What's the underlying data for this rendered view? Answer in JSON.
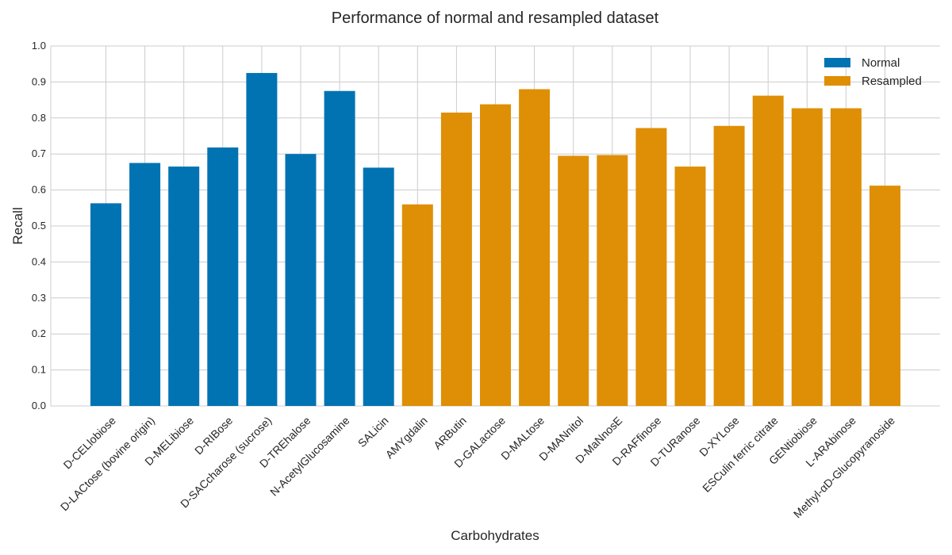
{
  "chart_data": {
    "type": "bar",
    "title": "Performance of normal and resampled dataset",
    "xlabel": "Carbohydrates",
    "ylabel": "Recall",
    "ylim": [
      0,
      1
    ],
    "yticks": [
      "0.0",
      "0.1",
      "0.2",
      "0.3",
      "0.4",
      "0.5",
      "0.6",
      "0.7",
      "0.8",
      "0.9",
      "1.0"
    ],
    "grid": true,
    "legend_position": "top-right",
    "categories": [
      "D-CELlobiose",
      "D-LACtose (bovine origin)",
      "D-MELibiose",
      "D-RIBose",
      "D-SACcharose (sucrose)",
      "D-TREhalose",
      "N-AcetylGlucosamine",
      "SALicin",
      "AMYgdalin",
      "ARButin",
      "D-GALactose",
      "D-MALtose",
      "D-MANnitol",
      "D-MaNnosE",
      "D-RAFfinose",
      "D-TURanose",
      "D-XYLose",
      "ESCulin ferric citrate",
      "GENtiobiose",
      "L-ARAbinose",
      "Methyl-αD-Glucopyranoside"
    ],
    "series": [
      {
        "name": "Normal",
        "color": "#0173b2",
        "values": [
          0.563,
          0.675,
          0.665,
          0.718,
          0.925,
          0.7,
          0.875,
          0.662,
          null,
          null,
          null,
          null,
          null,
          null,
          null,
          null,
          null,
          null,
          null,
          null,
          null
        ]
      },
      {
        "name": "Resampled",
        "color": "#de8f05",
        "values": [
          null,
          null,
          null,
          null,
          null,
          null,
          null,
          null,
          0.56,
          0.815,
          0.838,
          0.88,
          0.695,
          0.697,
          0.772,
          0.665,
          0.778,
          0.862,
          0.827,
          0.827,
          0.612
        ]
      }
    ]
  }
}
